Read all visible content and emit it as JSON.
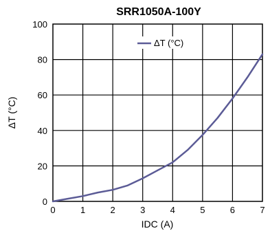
{
  "chart_data": {
    "type": "line",
    "title": "SRR1050A-100Y",
    "xlabel": "IDC (A)",
    "ylabel": "ΔT (°C)",
    "xlim": [
      0,
      7
    ],
    "ylim": [
      0,
      100
    ],
    "x_ticks": [
      "0",
      "1",
      "2",
      "3",
      "4",
      "5",
      "6",
      "7"
    ],
    "y_ticks": [
      "0",
      "20",
      "40",
      "60",
      "80",
      "100"
    ],
    "grid": true,
    "legend_position": "top-center",
    "series": [
      {
        "name": "ΔT (°C)",
        "color": "#5b5b96",
        "x": [
          0,
          0.5,
          1.0,
          1.5,
          2.0,
          2.5,
          3.0,
          3.5,
          4.0,
          4.5,
          5.0,
          5.5,
          6.0,
          6.5,
          7.0
        ],
        "y": [
          0,
          1.5,
          3,
          5,
          6.5,
          9,
          13,
          17.5,
          22,
          29,
          37.5,
          47,
          58,
          70,
          83
        ]
      }
    ]
  }
}
